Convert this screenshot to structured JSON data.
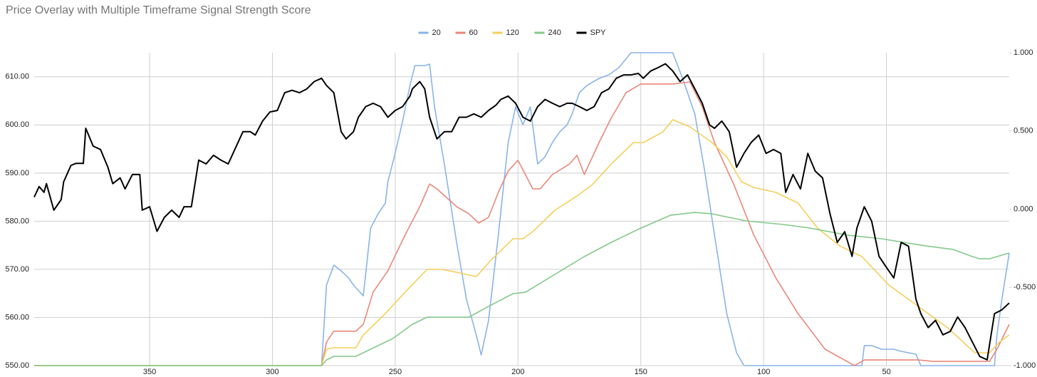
{
  "chart_data": {
    "type": "line",
    "title": "Price Overlay with Multiple Timeframe Signal Strength Score",
    "xlim": [
      397,
      0
    ],
    "xticks": [
      350,
      300,
      250,
      200,
      150,
      100,
      50
    ],
    "ylim": [
      550,
      615
    ],
    "yticks": [
      {
        "value": 550,
        "label": "550.00"
      },
      {
        "value": 560,
        "label": "560.00"
      },
      {
        "value": 570,
        "label": "570.00"
      },
      {
        "value": 580,
        "label": "580.00"
      },
      {
        "value": 590,
        "label": "590.00"
      },
      {
        "value": 600,
        "label": "600.00"
      },
      {
        "value": 610,
        "label": "610.00"
      }
    ],
    "y2lim": [
      -1,
      1
    ],
    "y2ticks": [
      {
        "value": 1,
        "label": "1.000"
      },
      {
        "value": 0.5,
        "label": "0.500"
      },
      {
        "value": 0,
        "label": "0.000"
      },
      {
        "value": -0.5,
        "label": "-0.500"
      },
      {
        "value": -1,
        "label": "-1.000"
      }
    ],
    "grid": true,
    "legend": "top",
    "series": [
      {
        "name": "20",
        "color": "#8ab4e8",
        "axis": "y2",
        "x": [
          397,
          280,
          278,
          275,
          272,
          269,
          267,
          263,
          260,
          257,
          254,
          253,
          250,
          247,
          244,
          242,
          238,
          236,
          234,
          230,
          225,
          221,
          217,
          215,
          212,
          208,
          204,
          201,
          198,
          195,
          192,
          189,
          186,
          183,
          180,
          178,
          175,
          172,
          167,
          163,
          159,
          154,
          137,
          133,
          128,
          124,
          120,
          115,
          111,
          108,
          60,
          59,
          56,
          52,
          47,
          44,
          38,
          36,
          6,
          5,
          3,
          0
        ],
        "values": [
          -1,
          -1,
          -0.485,
          -0.358,
          -0.394,
          -0.44,
          -0.485,
          -0.554,
          -0.121,
          -0.03,
          0.039,
          0.175,
          0.358,
          0.563,
          0.79,
          0.918,
          0.918,
          0.927,
          0.654,
          0.289,
          -0.212,
          -0.576,
          -0.804,
          -0.932,
          -0.713,
          -0.166,
          0.426,
          0.654,
          0.54,
          0.654,
          0.289,
          0.335,
          0.426,
          0.494,
          0.54,
          0.608,
          0.745,
          0.79,
          0.836,
          0.859,
          0.904,
          1,
          1,
          0.836,
          0.608,
          0.244,
          -0.166,
          -0.667,
          -0.918,
          -1,
          -1,
          -0.872,
          -0.872,
          -0.895,
          -0.895,
          -0.909,
          -0.927,
          -1,
          -1,
          -0.804,
          -0.576,
          -0.28
        ]
      },
      {
        "name": "60",
        "color": "#e8887a",
        "axis": "y2",
        "x": [
          397,
          280,
          278,
          275,
          266,
          263,
          259,
          253,
          246,
          240,
          236,
          233,
          225,
          220,
          216,
          212,
          208,
          204,
          200,
          197,
          194,
          191,
          186,
          179,
          176,
          173,
          167,
          162,
          156,
          150,
          137,
          130,
          125,
          120,
          112,
          104,
          95,
          86,
          75,
          63,
          59,
          37,
          31,
          8,
          5,
          0
        ],
        "values": [
          -1,
          -1,
          -0.85,
          -0.78,
          -0.78,
          -0.736,
          -0.53,
          -0.394,
          -0.166,
          0.016,
          0.161,
          0.13,
          0.016,
          -0.03,
          -0.089,
          -0.052,
          0.107,
          0.244,
          0.312,
          0.221,
          0.13,
          0.13,
          0.221,
          0.289,
          0.344,
          0.221,
          0.426,
          0.585,
          0.745,
          0.8,
          0.8,
          0.813,
          0.654,
          0.426,
          0.153,
          -0.166,
          -0.44,
          -0.667,
          -0.895,
          -1,
          -0.964,
          -0.964,
          -0.973,
          -0.973,
          -0.895,
          -0.736
        ]
      },
      {
        "name": "120",
        "color": "#f5cf5a",
        "axis": "y2",
        "x": [
          397,
          280,
          278,
          275,
          266,
          263,
          254,
          246,
          237,
          231,
          225,
          217,
          211,
          202,
          198,
          194,
          185,
          176,
          170,
          162,
          153,
          149,
          141,
          137,
          130,
          121,
          115,
          109,
          104,
          95,
          86,
          78,
          69,
          60,
          49,
          37,
          25,
          14,
          8,
          4,
          0
        ],
        "values": [
          -1,
          -1,
          -0.895,
          -0.886,
          -0.886,
          -0.804,
          -0.667,
          -0.531,
          -0.385,
          -0.385,
          -0.403,
          -0.431,
          -0.326,
          -0.189,
          -0.189,
          -0.144,
          -0.007,
          0.084,
          0.153,
          0.289,
          0.426,
          0.426,
          0.494,
          0.572,
          0.526,
          0.426,
          0.335,
          0.175,
          0.139,
          0.107,
          0.039,
          -0.121,
          -0.235,
          -0.303,
          -0.485,
          -0.622,
          -0.759,
          -0.918,
          -0.918,
          -0.85,
          -0.804
        ]
      },
      {
        "name": "240",
        "color": "#84c98a",
        "axis": "y2",
        "x": [
          397,
          280,
          278,
          275,
          266,
          260,
          251,
          243,
          237,
          220,
          211,
          202,
          197,
          185,
          173,
          162,
          150,
          138,
          128,
          121,
          107,
          92,
          81,
          66,
          52,
          34,
          23,
          15,
          12,
          8,
          0
        ],
        "values": [
          -1,
          -1,
          -0.964,
          -0.941,
          -0.941,
          -0.895,
          -0.827,
          -0.736,
          -0.69,
          -0.69,
          -0.613,
          -0.54,
          -0.531,
          -0.417,
          -0.303,
          -0.212,
          -0.121,
          -0.039,
          -0.021,
          -0.03,
          -0.075,
          -0.098,
          -0.121,
          -0.166,
          -0.189,
          -0.235,
          -0.257,
          -0.303,
          -0.317,
          -0.317,
          -0.28
        ]
      },
      {
        "name": "SPY",
        "color": "#000000",
        "axis": "y",
        "x": [
          397,
          395,
          393,
          392,
          389,
          386,
          385,
          382,
          380,
          377,
          376,
          373,
          370,
          367,
          365,
          362,
          360,
          357,
          354,
          353,
          350,
          347,
          344,
          341,
          338,
          336,
          333,
          330,
          327,
          324,
          321,
          318,
          312,
          309,
          307,
          304,
          301,
          298,
          295,
          292,
          289,
          286,
          283,
          280,
          278,
          275,
          272,
          270,
          267,
          265,
          262,
          259,
          256,
          253,
          250,
          247,
          244,
          243,
          240,
          238,
          236,
          233,
          230,
          227,
          224,
          221,
          218,
          215,
          212,
          209,
          207,
          204,
          201,
          198,
          195,
          192,
          189,
          186,
          183,
          180,
          178,
          175,
          172,
          169,
          166,
          163,
          160,
          157,
          154,
          151,
          149,
          146,
          143,
          140,
          137,
          134,
          131,
          128,
          125,
          122,
          120,
          117,
          114,
          111,
          108,
          105,
          102,
          99,
          96,
          93,
          91,
          88,
          85,
          82,
          79,
          76,
          73,
          70,
          67,
          64,
          62,
          59,
          56,
          53,
          50,
          47,
          44,
          41,
          38,
          36,
          33,
          30,
          27,
          24,
          21,
          18,
          15,
          12,
          9,
          6,
          3,
          0
        ],
        "values": [
          585.0,
          587.2,
          586.0,
          587.8,
          582.3,
          584.5,
          588.2,
          591.6,
          592.0,
          592.0,
          599.3,
          595.6,
          594.9,
          591.2,
          587.8,
          589.0,
          586.7,
          589.7,
          589.7,
          582.3,
          583.0,
          577.9,
          580.8,
          582.3,
          580.8,
          583.0,
          583.0,
          592.7,
          591.9,
          593.7,
          592.7,
          591.9,
          598.6,
          598.6,
          597.9,
          600.8,
          602.7,
          603.0,
          606.7,
          607.2,
          606.7,
          607.5,
          609.0,
          609.7,
          608.2,
          606.7,
          598.6,
          597.1,
          598.6,
          601.6,
          603.8,
          604.5,
          603.8,
          601.6,
          603.0,
          603.8,
          606.0,
          607.5,
          609.0,
          607.5,
          601.6,
          597.1,
          598.6,
          598.6,
          601.6,
          601.6,
          602.3,
          601.6,
          603.0,
          604.1,
          605.3,
          606.0,
          604.5,
          601.6,
          600.8,
          603.8,
          605.3,
          604.5,
          603.8,
          604.5,
          604.5,
          603.8,
          603.0,
          603.8,
          606.7,
          607.5,
          609.7,
          610.4,
          610.4,
          610.7,
          609.7,
          611.2,
          611.9,
          612.7,
          611.2,
          609.0,
          610.4,
          607.5,
          604.5,
          600.0,
          599.3,
          600.8,
          598.6,
          591.2,
          594.1,
          596.4,
          597.9,
          594.1,
          594.9,
          594.1,
          586.0,
          589.7,
          586.7,
          594.1,
          590.4,
          589.0,
          581.6,
          575.6,
          577.8,
          572.7,
          578.6,
          583.0,
          580.0,
          572.7,
          570.4,
          568.2,
          575.6,
          574.8,
          563.8,
          560.8,
          557.9,
          559.4,
          556.4,
          557.1,
          560.1,
          557.9,
          554.9,
          551.9,
          551.2,
          560.8,
          561.6,
          563.0
        ]
      }
    ]
  }
}
